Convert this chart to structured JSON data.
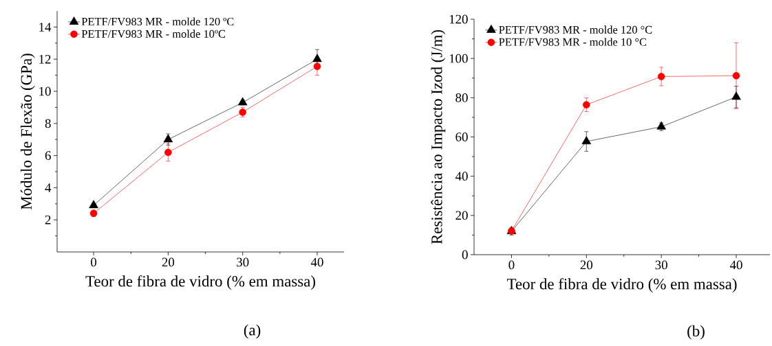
{
  "chart_data": [
    {
      "type": "line",
      "categories": [
        "0",
        "20",
        "30",
        "40"
      ],
      "xlabel": "Teor de fibra de vidro (% em massa)",
      "ylabel": "Módulo de Flexão (GPa)",
      "ylim": [
        0,
        15
      ],
      "yticks": [
        {
          "value": 1,
          "label": null
        },
        2,
        {
          "value": 3,
          "label": null
        },
        4,
        {
          "value": 5,
          "label": null
        },
        6,
        {
          "value": 7,
          "label": null
        },
        8,
        {
          "value": 9,
          "label": null
        },
        10,
        {
          "value": 11,
          "label": null
        },
        12,
        {
          "value": 13,
          "label": null
        },
        14
      ],
      "legend": "top left",
      "annotations": [
        "(a)"
      ],
      "series": [
        {
          "name": "PETF/FV983 MR - molde 120 ºC",
          "color": "#000000",
          "marker": "triangle",
          "values": [
            2.9,
            7.0,
            9.3,
            12.0
          ],
          "errors": [
            0.1,
            0.35,
            0.15,
            0.6
          ]
        },
        {
          "name": "PETF/FV983 MR - molde 10ºC",
          "color": "#ff0000",
          "marker": "circle",
          "values": [
            2.4,
            6.2,
            8.7,
            11.55
          ],
          "errors": [
            0.2,
            0.55,
            0.3,
            0.55
          ]
        }
      ]
    },
    {
      "type": "line",
      "categories": [
        "0",
        "20",
        "30",
        "40"
      ],
      "xlabel": "Teor de fibra de vidro (% em massa)",
      "ylabel": "Resistência ao Impacto Izod (J/m)",
      "ylim": [
        0,
        120
      ],
      "yticks": [
        0,
        {
          "value": 10,
          "label": null
        },
        20,
        {
          "value": 30,
          "label": null
        },
        40,
        {
          "value": 50,
          "label": null
        },
        60,
        {
          "value": 70,
          "label": null
        },
        80,
        {
          "value": 90,
          "label": null
        },
        100,
        {
          "value": 110,
          "label": null
        },
        120
      ],
      "legend": "top left",
      "annotations": [
        "(b)"
      ],
      "series": [
        {
          "name": "PETF/FV983 MR - molde 120 °C",
          "color": "#000000",
          "marker": "triangle",
          "values": [
            11.9,
            57.7,
            65.2,
            80.4
          ],
          "errors": [
            2,
            5,
            2,
            5.5
          ]
        },
        {
          "name": "PETF/FV983 MR - molde 10 °C",
          "color": "#ff0000",
          "marker": "circle",
          "values": [
            12.1,
            76.4,
            90.8,
            91.2
          ],
          "errors": [
            1,
            3.5,
            4.7,
            16.8
          ]
        }
      ]
    }
  ]
}
